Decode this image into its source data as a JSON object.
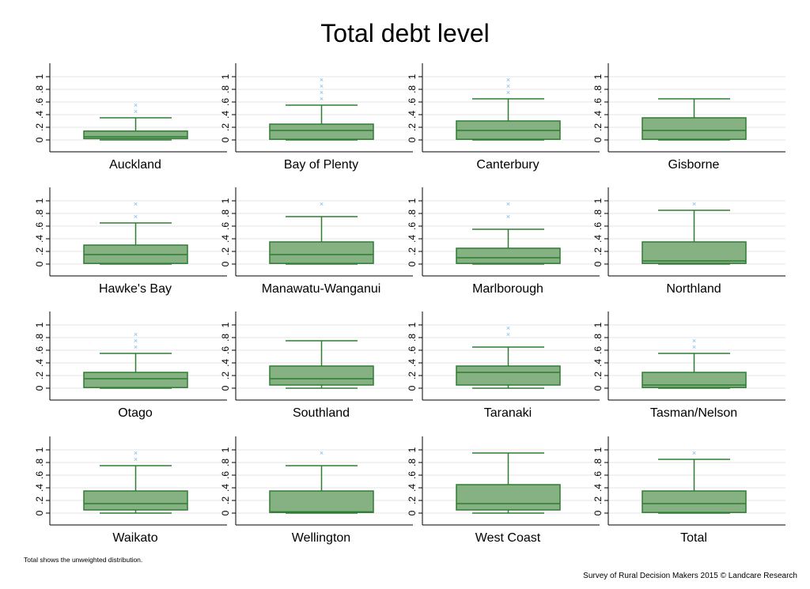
{
  "page": {
    "title": "Total debt level",
    "note": "Total shows the unweighted distribution.",
    "source": "Survey of Rural Decision Makers 2015 © Landcare Research"
  },
  "colors": {
    "box_fill": "#86b283",
    "box_stroke": "#2e7d32",
    "outlier": "#7bb8e6",
    "grid": "#e6e6e6",
    "axis": "#000000"
  },
  "chart_data": {
    "type": "box",
    "title": "Total debt level",
    "ylim": [
      0,
      1
    ],
    "yticks": [
      0,
      0.2,
      0.4,
      0.6,
      0.8,
      1
    ],
    "ytick_labels": [
      "0",
      ".2",
      ".4",
      ".6",
      ".8",
      "1"
    ],
    "grid": true,
    "panels": [
      {
        "name": "Auckland",
        "min": 0,
        "q1": 0.02,
        "median": 0.05,
        "q3": 0.14,
        "max": 0.35,
        "outliers": [
          0.45,
          0.55
        ]
      },
      {
        "name": "Bay of Plenty",
        "min": 0,
        "q1": 0.01,
        "median": 0.15,
        "q3": 0.25,
        "max": 0.55,
        "outliers": [
          0.65,
          0.75,
          0.85,
          0.95
        ]
      },
      {
        "name": "Canterbury",
        "min": 0,
        "q1": 0.01,
        "median": 0.15,
        "q3": 0.3,
        "max": 0.65,
        "outliers": [
          0.75,
          0.85,
          0.95
        ]
      },
      {
        "name": "Gisborne",
        "min": 0,
        "q1": 0.01,
        "median": 0.15,
        "q3": 0.35,
        "max": 0.65,
        "outliers": []
      },
      {
        "name": "Hawke's Bay",
        "min": 0,
        "q1": 0.01,
        "median": 0.15,
        "q3": 0.3,
        "max": 0.65,
        "outliers": [
          0.75,
          0.95
        ]
      },
      {
        "name": "Manawatu-Wanganui",
        "min": 0,
        "q1": 0.01,
        "median": 0.15,
        "q3": 0.35,
        "max": 0.75,
        "outliers": [
          0.95
        ]
      },
      {
        "name": "Marlborough",
        "min": 0,
        "q1": 0.01,
        "median": 0.1,
        "q3": 0.25,
        "max": 0.55,
        "outliers": [
          0.75,
          0.95
        ]
      },
      {
        "name": "Northland",
        "min": 0,
        "q1": 0.01,
        "median": 0.05,
        "q3": 0.35,
        "max": 0.85,
        "outliers": [
          0.95
        ]
      },
      {
        "name": "Otago",
        "min": 0,
        "q1": 0.01,
        "median": 0.15,
        "q3": 0.25,
        "max": 0.55,
        "outliers": [
          0.65,
          0.75,
          0.85
        ]
      },
      {
        "name": "Southland",
        "min": 0,
        "q1": 0.05,
        "median": 0.15,
        "q3": 0.35,
        "max": 0.75,
        "outliers": []
      },
      {
        "name": "Taranaki",
        "min": 0,
        "q1": 0.05,
        "median": 0.25,
        "q3": 0.35,
        "max": 0.65,
        "outliers": [
          0.85,
          0.95
        ]
      },
      {
        "name": "Tasman/Nelson",
        "min": 0,
        "q1": 0.01,
        "median": 0.05,
        "q3": 0.25,
        "max": 0.55,
        "outliers": [
          0.65,
          0.75
        ]
      },
      {
        "name": "Waikato",
        "min": 0,
        "q1": 0.05,
        "median": 0.15,
        "q3": 0.35,
        "max": 0.75,
        "outliers": [
          0.85,
          0.95
        ]
      },
      {
        "name": "Wellington",
        "min": 0,
        "q1": 0.01,
        "median": 0.02,
        "q3": 0.35,
        "max": 0.75,
        "outliers": [
          0.95
        ]
      },
      {
        "name": "West Coast",
        "min": 0,
        "q1": 0.05,
        "median": 0.15,
        "q3": 0.45,
        "max": 0.95,
        "outliers": []
      },
      {
        "name": "Total",
        "min": 0,
        "q1": 0.01,
        "median": 0.15,
        "q3": 0.35,
        "max": 0.85,
        "outliers": [
          0.95
        ]
      }
    ]
  }
}
